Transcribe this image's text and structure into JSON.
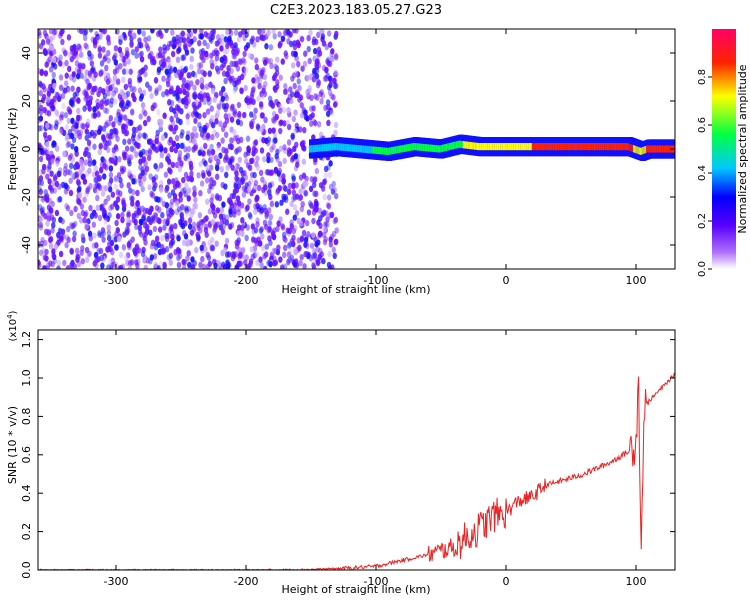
{
  "title": "C2E3.2023.183.05.27.G23",
  "chart_data": [
    {
      "type": "heatmap",
      "title": "C2E3.2023.183.05.27.G23",
      "xlabel": "Height of straight line (km)",
      "ylabel": "Frequency (Hz)",
      "xlim": [
        -360,
        130
      ],
      "ylim": [
        -50,
        50
      ],
      "xticks": [
        -300,
        -200,
        -100,
        0,
        100
      ],
      "yticks": [
        -40,
        -20,
        0,
        20,
        40
      ],
      "colorbar": {
        "label": "Normalized spectral amplitude",
        "range": [
          0,
          1
        ],
        "ticks": [
          "0.0",
          "0.2",
          "0.4",
          "0.6",
          "0.8"
        ],
        "colors": [
          "#ffffff",
          "#8800ff",
          "#0000ff",
          "#00e5ff",
          "#00ff00",
          "#ffff00",
          "#ff0000",
          "#ff0066"
        ]
      },
      "ridge": {
        "x": [
          -150,
          -130,
          -110,
          -90,
          -70,
          -50,
          -35,
          -20,
          0,
          20,
          40,
          60,
          80,
          95,
          100,
          105,
          110,
          130
        ],
        "frequency": [
          0,
          1,
          0,
          -1,
          1,
          0,
          2,
          1,
          1,
          1,
          1,
          1,
          1,
          1,
          0,
          -1,
          0,
          0
        ],
        "amplitude": [
          0.35,
          0.4,
          0.4,
          0.45,
          0.45,
          0.5,
          0.55,
          0.6,
          0.65,
          0.72,
          0.78,
          0.85,
          0.85,
          0.82,
          0.7,
          0.6,
          0.75,
          0.75
        ]
      },
      "grid": false
    },
    {
      "type": "line",
      "xlabel": "Height of straight line (km)",
      "ylabel": "SNR (10 * v/v)",
      "yscale_label": "(x10^4)",
      "xlim": [
        -360,
        130
      ],
      "ylim": [
        0,
        1.25
      ],
      "xticks": [
        -300,
        -200,
        -100,
        0,
        100
      ],
      "yticks": [
        "0.0",
        "0.2",
        "0.4",
        "0.6",
        "0.8",
        "1.0",
        "1.2"
      ],
      "series": [
        {
          "color": "#ee2222",
          "x": [
            -360,
            -300,
            -200,
            -150,
            -120,
            -100,
            -80,
            -60,
            -40,
            -30,
            -20,
            -10,
            0,
            10,
            20,
            30,
            40,
            50,
            60,
            70,
            80,
            90,
            95,
            100,
            102,
            104,
            106,
            110,
            120,
            130
          ],
          "y": [
            0.0,
            0.0,
            0.0,
            0.003,
            0.01,
            0.02,
            0.05,
            0.08,
            0.12,
            0.17,
            0.22,
            0.28,
            0.3,
            0.36,
            0.38,
            0.44,
            0.46,
            0.48,
            0.5,
            0.53,
            0.56,
            0.6,
            0.62,
            0.68,
            1.0,
            0.05,
            0.84,
            0.88,
            0.95,
            1.02
          ]
        }
      ],
      "grid": false
    }
  ]
}
